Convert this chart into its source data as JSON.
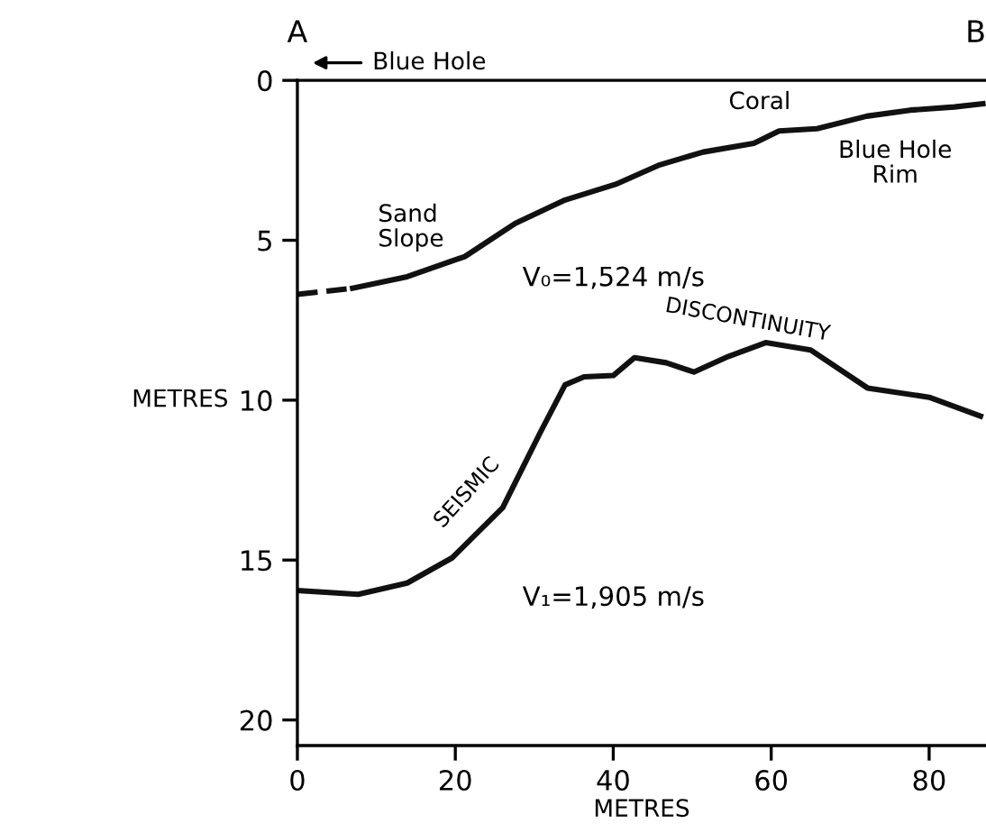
{
  "chart_data": {
    "type": "line",
    "xlabel": "METRES",
    "ylabel": "METRES",
    "xlim": [
      0,
      87.2
    ],
    "ylim": [
      20.8,
      0
    ],
    "xticks": [
      0,
      20,
      40,
      60,
      80
    ],
    "yticks": [
      0,
      5,
      10,
      15,
      20
    ],
    "grid": false,
    "legend": false,
    "marker": "none",
    "series": [
      {
        "color": "#111111",
        "line_style": "dashed",
        "x": [
          0,
          7
        ],
        "values": [
          6.69,
          6.5
        ]
      },
      {
        "color": "#111111",
        "line_style": "solid",
        "x": [
          7,
          13.9,
          21.2,
          27.6,
          33.9,
          40.3,
          45.9,
          51.4,
          57.8,
          61,
          65.8,
          72.1,
          77.6,
          83.2,
          86.8
        ],
        "values": [
          6.5,
          6.14,
          5.51,
          4.47,
          3.74,
          3.25,
          2.64,
          2.24,
          1.97,
          1.58,
          1.51,
          1.12,
          0.93,
          0.83,
          0.73
        ]
      },
      {
        "color": "#111111",
        "line_style": "solid",
        "x": [
          0,
          7.7,
          13.9,
          19.6,
          26,
          30.8,
          33.9,
          36.3,
          40,
          42.7,
          46.7,
          50.2,
          54.6,
          59.3,
          65,
          72.2,
          80,
          86.5
        ],
        "values": [
          15.95,
          16.07,
          15.72,
          14.93,
          13.36,
          10.99,
          9.52,
          9.27,
          9.23,
          8.67,
          8.83,
          9.12,
          8.63,
          8.2,
          8.43,
          9.62,
          9.91,
          10.5
        ]
      }
    ],
    "annotations": [
      "A",
      "B",
      "Blue Hole",
      "Coral",
      "Blue Hole\nRim",
      "Sand\nSlope",
      "V₀=1,524 m/s",
      "SEISMIC",
      "DISCONTINUITY",
      "V₁=1,905 m/s"
    ]
  }
}
